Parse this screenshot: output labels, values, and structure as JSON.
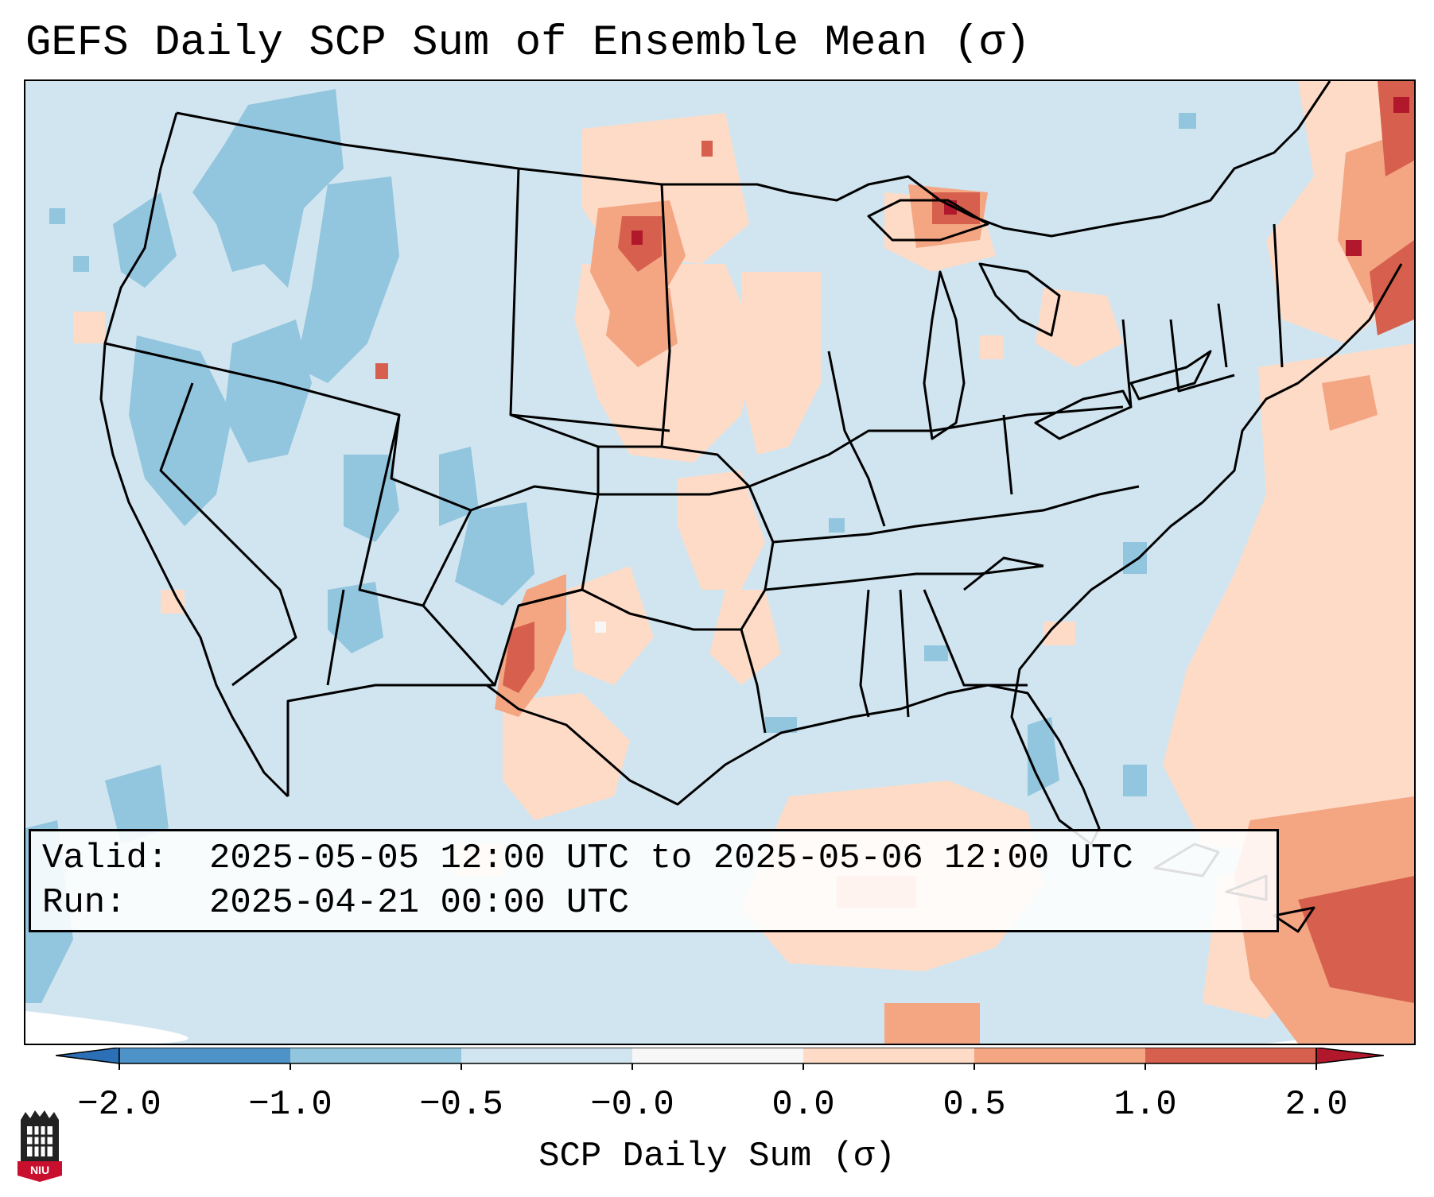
{
  "title": "GEFS Daily SCP Sum of Ensemble Mean (σ)",
  "info": {
    "valid_label": "Valid:",
    "valid_value": "2025-05-05 12:00 UTC to 2025-05-06 12:00 UTC",
    "run_label": "Run:",
    "run_value": "2025-04-21 00:00 UTC"
  },
  "colorbar": {
    "label": "SCP Daily Sum (σ)",
    "ticks": [
      "−2.0",
      "−1.0",
      "−0.5",
      "−0.0",
      "0.0",
      "0.5",
      "1.0",
      "2.0"
    ],
    "colors": {
      "below_min": "#2b6fb6",
      "neg_2_to_neg_1": "#4d93c8",
      "neg_1_to_neg_05": "#92c5de",
      "neg_05_to_0": "#d1e5f0",
      "near_zero": "#f7f7f7",
      "zero_to_05": "#fddbc7",
      "pos_05_to_1": "#f4a582",
      "pos_1_to_2": "#d6604d",
      "above_max": "#b2182b"
    }
  },
  "map": {
    "background_field": "#d1e5f0",
    "boundaries": "#000000"
  },
  "logo": {
    "text": "NIU",
    "icon": "niu-logo-icon"
  }
}
